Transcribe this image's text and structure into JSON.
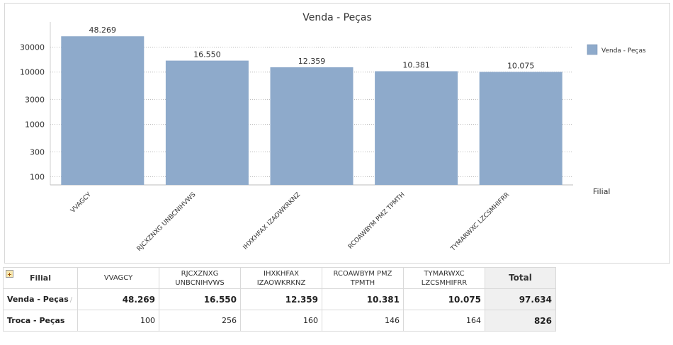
{
  "chart_data": {
    "type": "bar",
    "title": "Venda - Peças",
    "categories": [
      "VVAGCY",
      "RJCXZNXG UNBCNIHVWS",
      "IHXKHFAX IZAOWKRKNZ",
      "RCOAWBYM PMZ TPMTH",
      "TYMARWXC LZCSMHIFRR"
    ],
    "series": [
      {
        "name": "Venda - Peças",
        "values": [
          48269,
          16550,
          12359,
          10381,
          10075
        ],
        "labels": [
          "48.269",
          "16.550",
          "12.359",
          "10.381",
          "10.075"
        ],
        "color": "#8eaacb"
      }
    ],
    "y_scale": "log",
    "ylim": [
      70,
      80000
    ],
    "y_ticks": [
      100,
      300,
      1000,
      3000,
      10000,
      30000
    ],
    "y_tick_labels": [
      "100",
      "300",
      "1000",
      "3000",
      "10000",
      "30000"
    ],
    "xlabel": "Filial",
    "grid": "dotted horizontal",
    "legend_position": "right"
  },
  "table": {
    "corner_label": "Filial",
    "columns": [
      {
        "line1": "VVAGCY",
        "line2": ""
      },
      {
        "line1": "RJCXZNXG",
        "line2": "UNBCNIHVWS"
      },
      {
        "line1": "IHXKHFAX",
        "line2": "IZAOWKRKNZ"
      },
      {
        "line1": "RCOAWBYM PMZ",
        "line2": "TPMTH"
      },
      {
        "line1": "TYMARWXC",
        "line2": "LZCSMHIFRR"
      }
    ],
    "total_label": "Total",
    "rows": [
      {
        "label": "Venda - Peças",
        "values": [
          "48.269",
          "16.550",
          "12.359",
          "10.381",
          "10.075"
        ],
        "total": "97.634"
      },
      {
        "label": "Troca - Peças",
        "values": [
          "100",
          "256",
          "160",
          "146",
          "164"
        ],
        "total": "826"
      }
    ]
  }
}
